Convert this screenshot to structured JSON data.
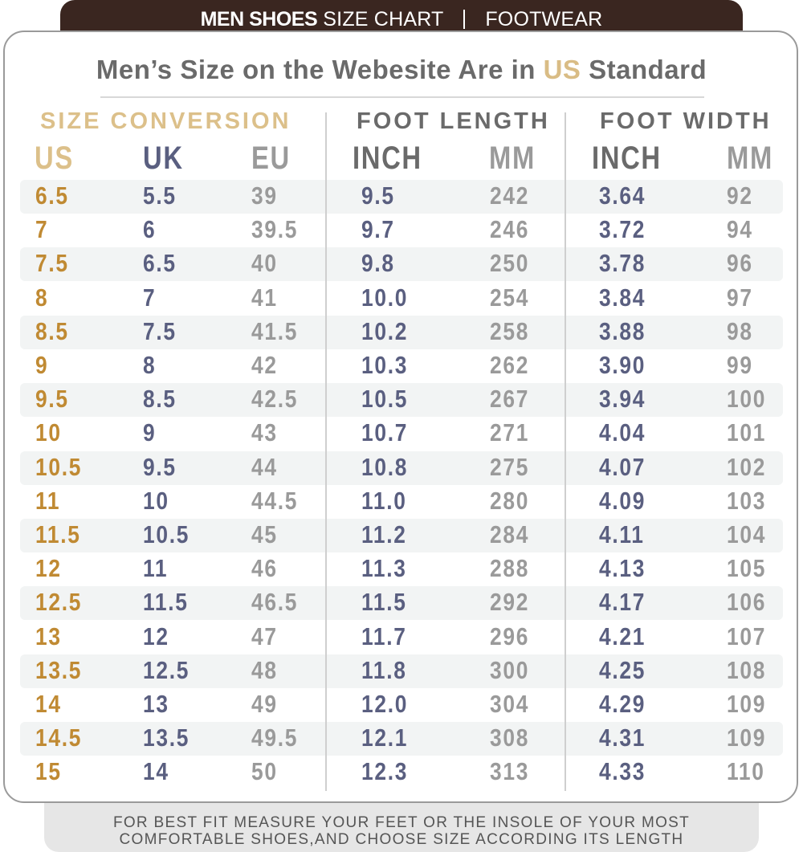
{
  "banner": {
    "title_bold": "MEN SHOES",
    "title_rest": "SIZE CHART",
    "category": "FOOTWEAR"
  },
  "headline": {
    "before": "Men’s Size on the Webesite Are in",
    "accent": "US",
    "after": "Standard"
  },
  "groups": {
    "size_conversion": "SIZE CONVERSION",
    "foot_length": "FOOT LENGTH",
    "foot_width": "FOOT WIDTH"
  },
  "columns": [
    "US",
    "UK",
    "EU",
    "INCH",
    "MM",
    "INCH",
    "MM"
  ],
  "colors": {
    "banner": "#3a2620",
    "gold": "#c08a33",
    "gold_light": "#dcc08a",
    "navy": "#5a5f80",
    "gray": "#9a9a9a",
    "stripe": "#f2f4f4"
  },
  "rows": [
    [
      "6.5",
      "5.5",
      "39",
      "9.5",
      "242",
      "3.64",
      "92"
    ],
    [
      "7",
      "6",
      "39.5",
      "9.7",
      "246",
      "3.72",
      "94"
    ],
    [
      "7.5",
      "6.5",
      "40",
      "9.8",
      "250",
      "3.78",
      "96"
    ],
    [
      "8",
      "7",
      "41",
      "10.0",
      "254",
      "3.84",
      "97"
    ],
    [
      "8.5",
      "7.5",
      "41.5",
      "10.2",
      "258",
      "3.88",
      "98"
    ],
    [
      "9",
      "8",
      "42",
      "10.3",
      "262",
      "3.90",
      "99"
    ],
    [
      "9.5",
      "8.5",
      "42.5",
      "10.5",
      "267",
      "3.94",
      "100"
    ],
    [
      "10",
      "9",
      "43",
      "10.7",
      "271",
      "4.04",
      "101"
    ],
    [
      "10.5",
      "9.5",
      "44",
      "10.8",
      "275",
      "4.07",
      "102"
    ],
    [
      "11",
      "10",
      "44.5",
      "11.0",
      "280",
      "4.09",
      "103"
    ],
    [
      "11.5",
      "10.5",
      "45",
      "11.2",
      "284",
      "4.11",
      "104"
    ],
    [
      "12",
      "11",
      "46",
      "11.3",
      "288",
      "4.13",
      "105"
    ],
    [
      "12.5",
      "11.5",
      "46.5",
      "11.5",
      "292",
      "4.17",
      "106"
    ],
    [
      "13",
      "12",
      "47",
      "11.7",
      "296",
      "4.21",
      "107"
    ],
    [
      "13.5",
      "12.5",
      "48",
      "11.8",
      "300",
      "4.25",
      "108"
    ],
    [
      "14",
      "13",
      "49",
      "12.0",
      "304",
      "4.29",
      "109"
    ],
    [
      "14.5",
      "13.5",
      "49.5",
      "12.1",
      "308",
      "4.31",
      "109"
    ],
    [
      "15",
      "14",
      "50",
      "12.3",
      "313",
      "4.33",
      "110"
    ]
  ],
  "footer": {
    "line1": "FOR BEST FIT MEASURE YOUR FEET OR THE INSOLE OF YOUR MOST",
    "line2": "COMFORTABLE SHOES,AND CHOOSE SIZE ACCORDING ITS LENGTH"
  }
}
